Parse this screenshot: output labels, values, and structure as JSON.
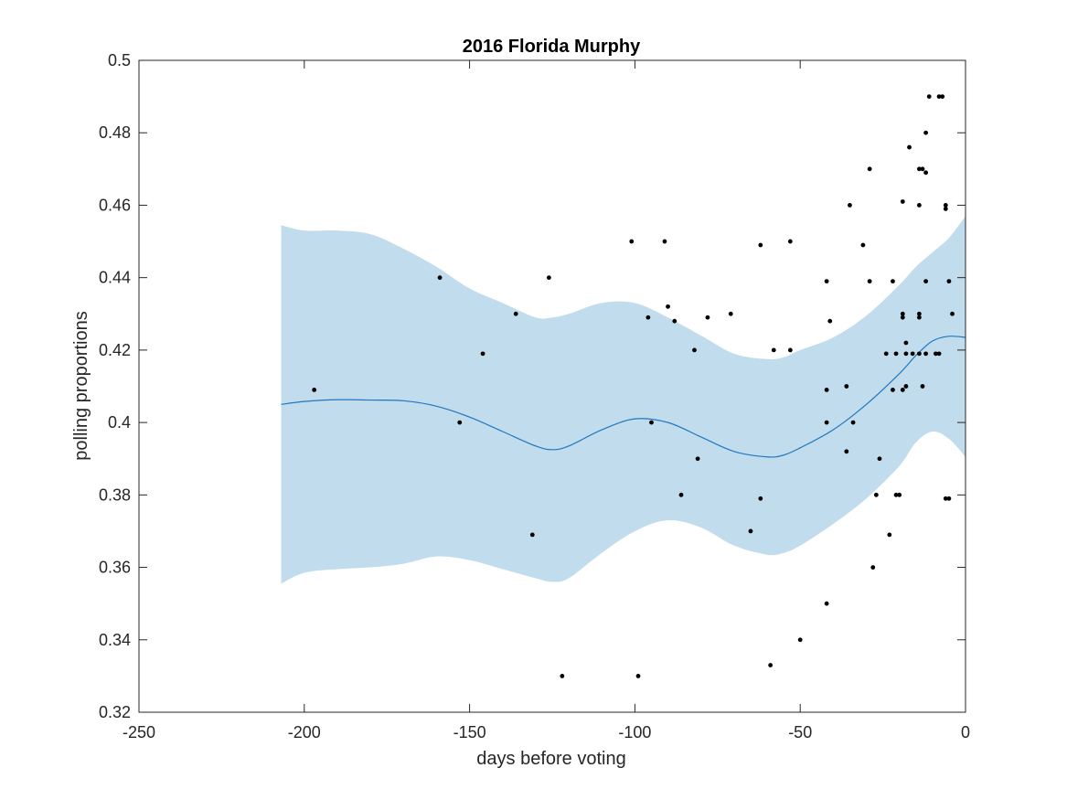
{
  "chart_data": {
    "type": "scatter",
    "title": "2016 Florida Murphy",
    "xlabel": "days before voting",
    "ylabel": "polling proportions",
    "xlim": [
      -250,
      0
    ],
    "ylim": [
      0.32,
      0.5
    ],
    "xticks": [
      -250,
      -200,
      -150,
      -100,
      -50,
      0
    ],
    "xtick_labels": [
      "-250",
      "-200",
      "-150",
      "-100",
      "-50",
      "0"
    ],
    "yticks": [
      0.32,
      0.34,
      0.36,
      0.38,
      0.4,
      0.42,
      0.44,
      0.46,
      0.48,
      0.5
    ],
    "ytick_labels": [
      "0.32",
      "0.34",
      "0.36",
      "0.38",
      "0.4",
      "0.42",
      "0.44",
      "0.46",
      "0.48",
      "0.5"
    ],
    "grid": false,
    "colors": {
      "band": "#c1dcec",
      "line": "#1f78c1",
      "points": "#000000",
      "axes": "#262626"
    },
    "series": [
      {
        "kind": "band",
        "x": [
          -207,
          -200,
          -190,
          -180,
          -170,
          -160,
          -150,
          -140,
          -130,
          -125,
          -120,
          -110,
          -100,
          -90,
          -80,
          -70,
          -60,
          -55,
          -50,
          -40,
          -30,
          -20,
          -15,
          -10,
          -5,
          0
        ],
        "upper": [
          0.4545,
          0.453,
          0.453,
          0.452,
          0.448,
          0.443,
          0.437,
          0.433,
          0.429,
          0.429,
          0.43,
          0.433,
          0.433,
          0.429,
          0.424,
          0.419,
          0.4175,
          0.418,
          0.42,
          0.4235,
          0.4295,
          0.438,
          0.443,
          0.447,
          0.451,
          0.457
        ],
        "lower": [
          0.3555,
          0.3585,
          0.3595,
          0.36,
          0.361,
          0.363,
          0.362,
          0.3595,
          0.357,
          0.356,
          0.357,
          0.364,
          0.37,
          0.373,
          0.371,
          0.366,
          0.3635,
          0.364,
          0.366,
          0.372,
          0.379,
          0.388,
          0.3945,
          0.3975,
          0.3955,
          0.3905
        ]
      },
      {
        "kind": "line",
        "x": [
          -207,
          -200,
          -190,
          -180,
          -170,
          -160,
          -150,
          -140,
          -130,
          -125,
          -120,
          -110,
          -100,
          -90,
          -80,
          -70,
          -60,
          -55,
          -50,
          -40,
          -30,
          -20,
          -15,
          -10,
          -5,
          0
        ],
        "y": [
          0.405,
          0.4058,
          0.4063,
          0.4062,
          0.406,
          0.4045,
          0.4015,
          0.3975,
          0.3935,
          0.3925,
          0.3935,
          0.398,
          0.401,
          0.4,
          0.396,
          0.392,
          0.3905,
          0.391,
          0.393,
          0.398,
          0.405,
          0.4135,
          0.4185,
          0.4225,
          0.4238,
          0.4235
        ]
      },
      {
        "kind": "points",
        "points": [
          [
            -197,
            0.409
          ],
          [
            -159,
            0.44
          ],
          [
            -153,
            0.4
          ],
          [
            -146,
            0.419
          ],
          [
            -136,
            0.43
          ],
          [
            -131,
            0.369
          ],
          [
            -126,
            0.44
          ],
          [
            -122,
            0.33
          ],
          [
            -101,
            0.45
          ],
          [
            -99,
            0.33
          ],
          [
            -96,
            0.429
          ],
          [
            -95,
            0.4
          ],
          [
            -91,
            0.45
          ],
          [
            -90,
            0.432
          ],
          [
            -88,
            0.428
          ],
          [
            -86,
            0.38
          ],
          [
            -82,
            0.42
          ],
          [
            -81,
            0.39
          ],
          [
            -78,
            0.429
          ],
          [
            -71,
            0.43
          ],
          [
            -65,
            0.37
          ],
          [
            -62,
            0.449
          ],
          [
            -62,
            0.379
          ],
          [
            -59,
            0.333
          ],
          [
            -58,
            0.42
          ],
          [
            -53,
            0.45
          ],
          [
            -53,
            0.42
          ],
          [
            -50,
            0.34
          ],
          [
            -42,
            0.439
          ],
          [
            -42,
            0.409
          ],
          [
            -42,
            0.4
          ],
          [
            -42,
            0.35
          ],
          [
            -41,
            0.428
          ],
          [
            -36,
            0.41
          ],
          [
            -36,
            0.392
          ],
          [
            -35,
            0.46
          ],
          [
            -34,
            0.4
          ],
          [
            -31,
            0.449
          ],
          [
            -29,
            0.47
          ],
          [
            -29,
            0.439
          ],
          [
            -28,
            0.36
          ],
          [
            -27,
            0.38
          ],
          [
            -26,
            0.39
          ],
          [
            -24,
            0.419
          ],
          [
            -23,
            0.369
          ],
          [
            -22,
            0.439
          ],
          [
            -22,
            0.409
          ],
          [
            -21,
            0.38
          ],
          [
            -21,
            0.419
          ],
          [
            -20,
            0.38
          ],
          [
            -19,
            0.461
          ],
          [
            -19,
            0.43
          ],
          [
            -19,
            0.429
          ],
          [
            -19,
            0.409
          ],
          [
            -18,
            0.422
          ],
          [
            -18,
            0.419
          ],
          [
            -18,
            0.41
          ],
          [
            -17,
            0.476
          ],
          [
            -16,
            0.419
          ],
          [
            -14,
            0.47
          ],
          [
            -14,
            0.46
          ],
          [
            -14,
            0.43
          ],
          [
            -14,
            0.429
          ],
          [
            -14,
            0.419
          ],
          [
            -13,
            0.47
          ],
          [
            -13,
            0.41
          ],
          [
            -12,
            0.469
          ],
          [
            -12,
            0.48
          ],
          [
            -12,
            0.439
          ],
          [
            -12,
            0.419
          ],
          [
            -11,
            0.49
          ],
          [
            -9,
            0.419
          ],
          [
            -8,
            0.49
          ],
          [
            -8,
            0.419
          ],
          [
            -7,
            0.49
          ],
          [
            -6,
            0.46
          ],
          [
            -6,
            0.459
          ],
          [
            -6,
            0.379
          ],
          [
            -5,
            0.439
          ],
          [
            -5,
            0.379
          ],
          [
            -4,
            0.43
          ]
        ]
      }
    ]
  }
}
